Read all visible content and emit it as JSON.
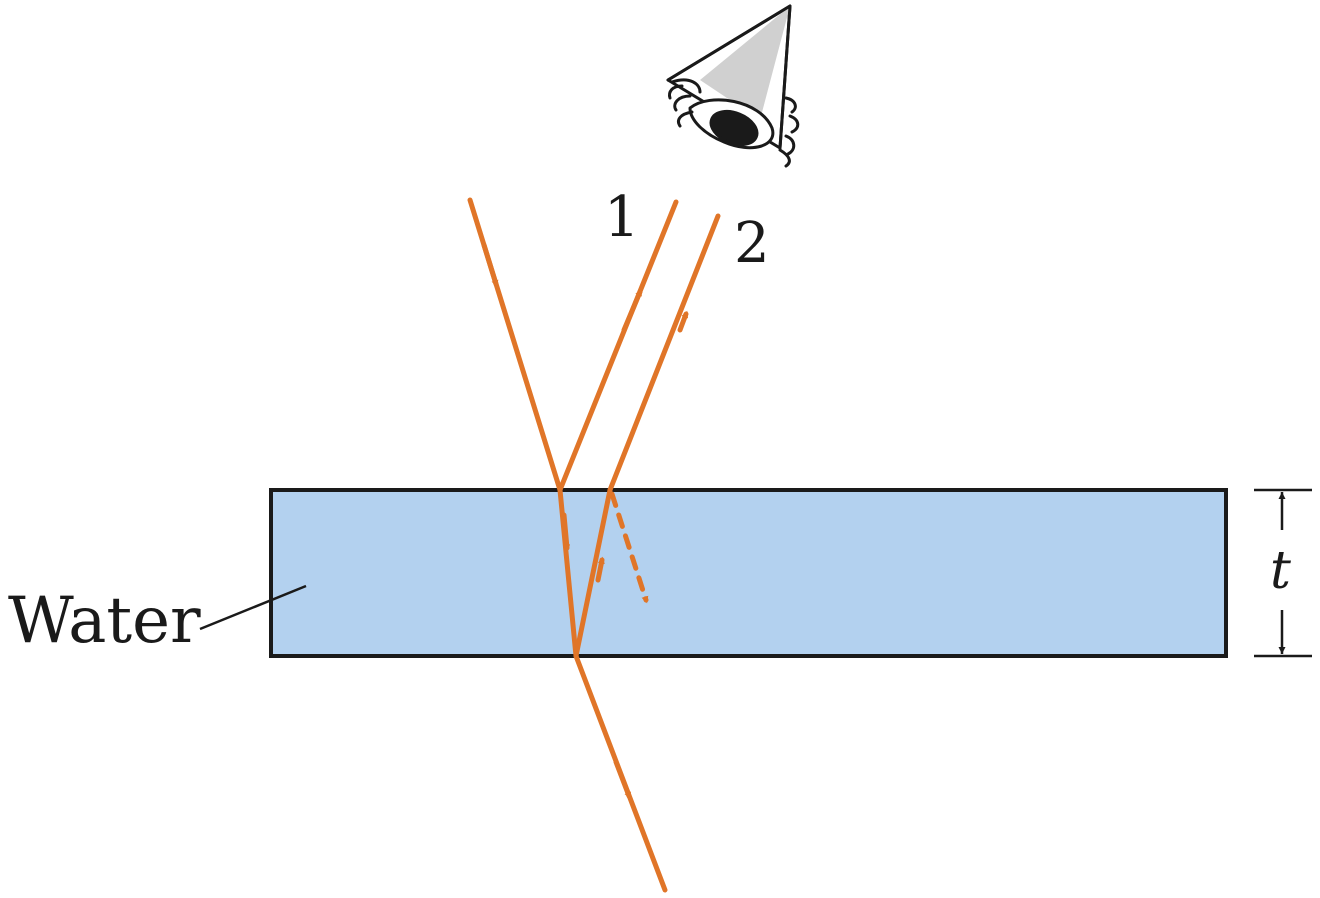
{
  "labels": {
    "ray_1": "1",
    "ray_2": "2",
    "water": "Water",
    "thickness": "t"
  },
  "icons": {
    "observer": "eye-icon"
  },
  "colors": {
    "ray": "#e07528",
    "water_fill": "#b3d1ef",
    "outline": "#1a1a1a",
    "background": "#ffffff"
  }
}
